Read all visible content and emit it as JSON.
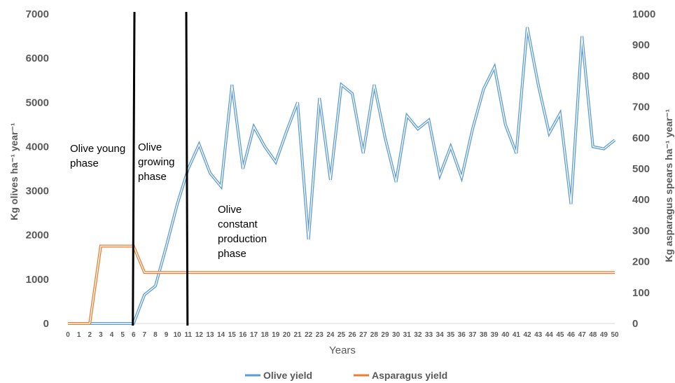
{
  "chart_data": {
    "type": "line",
    "x": [
      0,
      1,
      2,
      3,
      4,
      5,
      6,
      7,
      8,
      9,
      10,
      11,
      12,
      13,
      14,
      15,
      16,
      17,
      18,
      19,
      20,
      21,
      22,
      23,
      24,
      25,
      26,
      27,
      28,
      29,
      30,
      31,
      32,
      33,
      34,
      35,
      36,
      37,
      38,
      39,
      40,
      41,
      42,
      43,
      44,
      45,
      46,
      47,
      48,
      49,
      50
    ],
    "xlabel": "Years",
    "y_left_label": "Kg olives ha⁻¹ year⁻¹",
    "y_right_label": "Kg asparagus spears ha⁻¹ year⁻¹",
    "y_left_lim": [
      0,
      7000
    ],
    "y_right_lim": [
      0,
      1000
    ],
    "y_left_ticks": [
      "0",
      "1000",
      "2000",
      "3000",
      "4000",
      "5000",
      "6000",
      "7000"
    ],
    "y_right_ticks": [
      "0",
      "100",
      "200",
      "300",
      "400",
      "500",
      "600",
      "700",
      "800",
      "900",
      "1000"
    ],
    "series": [
      {
        "name": "Olive yield",
        "axis": "left",
        "color": "#5B9BD5",
        "values": [
          0,
          0,
          0,
          0,
          0,
          0,
          0,
          650,
          850,
          1750,
          2700,
          3500,
          4050,
          3400,
          3100,
          5400,
          3500,
          4450,
          4000,
          3650,
          4350,
          5000,
          1900,
          5100,
          3250,
          5400,
          5200,
          3850,
          5400,
          4200,
          3200,
          4700,
          4400,
          4600,
          3350,
          4000,
          3300,
          4400,
          5300,
          5800,
          4500,
          3850,
          6700,
          5400,
          4300,
          4750,
          2700,
          6500,
          4000,
          3950,
          4150
        ]
      },
      {
        "name": "Asparagus yield",
        "axis": "right",
        "color": "#ED7D31",
        "values": [
          0,
          0,
          0,
          250,
          250,
          250,
          250,
          165,
          165,
          165,
          165,
          165,
          165,
          165,
          165,
          165,
          165,
          165,
          165,
          165,
          165,
          165,
          165,
          165,
          165,
          165,
          165,
          165,
          165,
          165,
          165,
          165,
          165,
          165,
          165,
          165,
          165,
          165,
          165,
          165,
          165,
          165,
          165,
          165,
          165,
          165,
          165,
          165,
          165,
          165,
          165
        ]
      }
    ],
    "phase_lines_x": [
      6,
      11
    ],
    "annotations": [
      {
        "lines": [
          "Olive young",
          "phase"
        ]
      },
      {
        "lines": [
          "Olive",
          "growing",
          "phase"
        ]
      },
      {
        "lines": [
          "Olive",
          "constant",
          "production",
          "phase"
        ]
      }
    ],
    "legend_position": "bottom",
    "grid": false
  }
}
